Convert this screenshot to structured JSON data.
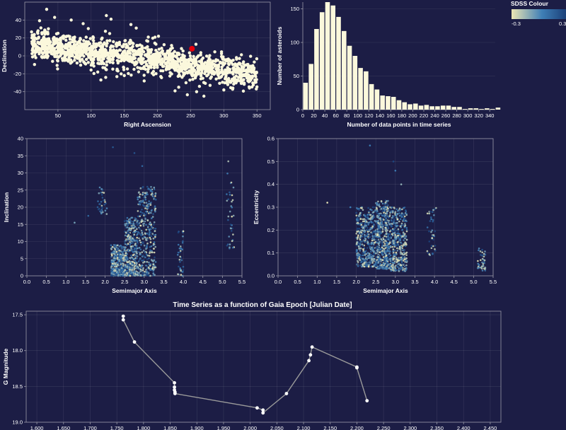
{
  "legend": {
    "title": "SDSS Colour",
    "min_label": "-0.3",
    "max_label": "0.3",
    "colors": [
      "#ece6b4",
      "#3f7fb6",
      "#1a3f78"
    ]
  },
  "theme": {
    "background": "#1c1d45",
    "point_color": "#fbf8dc",
    "highlight_color": "#e8000b",
    "bar_color": "#fbf8dc",
    "line_color": "#9a9a9a"
  },
  "chart_data": [
    {
      "id": "sky",
      "type": "scatter",
      "title": "",
      "xlabel": "Right Ascension",
      "ylabel": "Declination",
      "xlim": [
        0,
        370
      ],
      "ylim": [
        -60,
        60
      ],
      "xticks": [
        "50",
        "100",
        "150",
        "200",
        "250",
        "300",
        "350"
      ],
      "yticks": [
        "-40",
        "-20",
        "0",
        "20",
        "40"
      ],
      "grid": true,
      "point_count": 1500,
      "trend": "declination falls from about +10 near RA 30 to about -15 near RA 330, spread about ±12",
      "highlight": {
        "x": 252,
        "y": 8
      },
      "outliers": [
        {
          "x": 33,
          "y": 52
        },
        {
          "x": 45,
          "y": 43
        },
        {
          "x": 70,
          "y": 40
        },
        {
          "x": 88,
          "y": 36
        },
        {
          "x": 123,
          "y": 45
        },
        {
          "x": 130,
          "y": 41
        },
        {
          "x": 160,
          "y": 35
        },
        {
          "x": 168,
          "y": 31
        },
        {
          "x": 258,
          "y": 13
        },
        {
          "x": 122,
          "y": -24
        },
        {
          "x": 150,
          "y": -22
        },
        {
          "x": 232,
          "y": -35
        },
        {
          "x": 243,
          "y": -30
        },
        {
          "x": 259,
          "y": -40
        },
        {
          "x": 270,
          "y": -45
        },
        {
          "x": 300,
          "y": -38
        },
        {
          "x": 306,
          "y": -32
        },
        {
          "x": 340,
          "y": -25
        },
        {
          "x": 20,
          "y": 28
        },
        {
          "x": 110,
          "y": -18
        },
        {
          "x": 180,
          "y": -28
        }
      ]
    },
    {
      "id": "hist",
      "type": "bar",
      "title": "",
      "xlabel": "Number of data points in time series",
      "ylabel": "Number of asteroids",
      "xlim": [
        0,
        350
      ],
      "ylim": [
        0,
        160
      ],
      "xticks": [
        "0",
        "20",
        "40",
        "60",
        "80",
        "100",
        "120",
        "140",
        "160",
        "180",
        "200",
        "220",
        "240",
        "260",
        "280",
        "300",
        "320",
        "340"
      ],
      "yticks": [
        "0",
        "50",
        "100",
        "150"
      ],
      "bin_width": 10,
      "bin_start": 0,
      "values": [
        40,
        68,
        120,
        145,
        160,
        155,
        138,
        117,
        95,
        80,
        62,
        57,
        38,
        30,
        21,
        20,
        19,
        14,
        11,
        8,
        9,
        6,
        7,
        5,
        5,
        6,
        6,
        4,
        4,
        1,
        2,
        2,
        1,
        2,
        1,
        3
      ]
    },
    {
      "id": "incl",
      "type": "scatter",
      "title": "",
      "xlabel": "Semimajor Axis",
      "ylabel": "Inclination",
      "xlim": [
        0,
        5.5
      ],
      "ylim": [
        0,
        40
      ],
      "xticks": [
        "0.0",
        "0.5",
        "1.0",
        "1.5",
        "2.0",
        "2.5",
        "3.0",
        "3.5",
        "4.0",
        "4.5",
        "5.0",
        "5.5"
      ],
      "yticks": [
        "0",
        "5",
        "10",
        "15",
        "20",
        "25",
        "30",
        "35",
        "40"
      ],
      "color_encoding": "SDSS Colour",
      "point_count": 1450,
      "clusters": [
        {
          "a_range": [
            2.15,
            2.5
          ],
          "i_range": [
            0,
            9
          ]
        },
        {
          "a_range": [
            2.5,
            2.83
          ],
          "i_range": [
            0,
            17
          ]
        },
        {
          "a_range": [
            2.83,
            3.3
          ],
          "i_range": [
            0,
            26
          ]
        },
        {
          "a_range": [
            1.8,
            2.05
          ],
          "i_range": [
            18,
            26
          ]
        },
        {
          "a_range": [
            3.85,
            4.0
          ],
          "i_range": [
            0,
            13
          ]
        },
        {
          "a_range": [
            5.1,
            5.3
          ],
          "i_range": [
            8,
            34
          ]
        }
      ],
      "singles": [
        {
          "x": 1.22,
          "y": 15.5
        },
        {
          "x": 1.57,
          "y": 17.5
        },
        {
          "x": 2.2,
          "y": 37.5
        },
        {
          "x": 2.75,
          "y": 35.8
        },
        {
          "x": 2.95,
          "y": 32
        },
        {
          "x": 4.0,
          "y": 13
        }
      ]
    },
    {
      "id": "ecc",
      "type": "scatter",
      "title": "",
      "xlabel": "Semimajor Axis",
      "ylabel": "Eccentricity",
      "xlim": [
        0,
        5.5
      ],
      "ylim": [
        0,
        0.6
      ],
      "xticks": [
        "0.0",
        "0.5",
        "1.0",
        "1.5",
        "2.0",
        "2.5",
        "3.0",
        "3.5",
        "4.0",
        "4.5",
        "5.0",
        "5.5"
      ],
      "yticks": [
        "0.0",
        "0.1",
        "0.2",
        "0.3",
        "0.4",
        "0.5",
        "0.6"
      ],
      "color_encoding": "SDSS Colour",
      "point_count": 1450,
      "clusters": [
        {
          "a_range": [
            2.0,
            2.5
          ],
          "e_range": [
            0.04,
            0.3
          ]
        },
        {
          "a_range": [
            2.5,
            2.83
          ],
          "e_range": [
            0.03,
            0.33
          ]
        },
        {
          "a_range": [
            2.83,
            3.3
          ],
          "e_range": [
            0.02,
            0.3
          ]
        },
        {
          "a_range": [
            3.8,
            4.05
          ],
          "e_range": [
            0.09,
            0.3
          ]
        },
        {
          "a_range": [
            5.1,
            5.3
          ],
          "e_range": [
            0.02,
            0.12
          ]
        }
      ],
      "singles": [
        {
          "x": 1.26,
          "y": 0.32
        },
        {
          "x": 2.35,
          "y": 0.57
        },
        {
          "x": 2.95,
          "y": 0.5
        },
        {
          "x": 3.0,
          "y": 0.46
        },
        {
          "x": 1.85,
          "y": 0.3
        },
        {
          "x": 3.15,
          "y": 0.4
        }
      ]
    },
    {
      "id": "series",
      "type": "line",
      "title": "Time Series as a function of Gaia Epoch [Julian Date]",
      "xlabel": "",
      "ylabel": "G Magnitude",
      "xlim": [
        1580,
        2470
      ],
      "ylim": [
        17.45,
        19.0
      ],
      "y_reversed": true,
      "xticks": [
        "1,600",
        "1,650",
        "1,700",
        "1,750",
        "1,800",
        "1,850",
        "1,900",
        "1,950",
        "2,000",
        "2,050",
        "2,100",
        "2,150",
        "2,200",
        "2,250",
        "2,300",
        "2,350",
        "2,400",
        "2,450"
      ],
      "yticks": [
        "17.5",
        "18.0",
        "18.5",
        "19.0"
      ],
      "x": [
        1762,
        1762,
        1783,
        1858,
        1858,
        1858,
        1859,
        1859,
        2013,
        2024,
        2024,
        2068,
        2110,
        2113,
        2116,
        2200,
        2200,
        2219
      ],
      "y": [
        17.52,
        17.57,
        17.88,
        18.45,
        18.51,
        18.55,
        18.58,
        18.6,
        18.8,
        18.83,
        18.87,
        18.6,
        18.14,
        18.06,
        17.95,
        18.23,
        18.24,
        18.7
      ]
    }
  ]
}
